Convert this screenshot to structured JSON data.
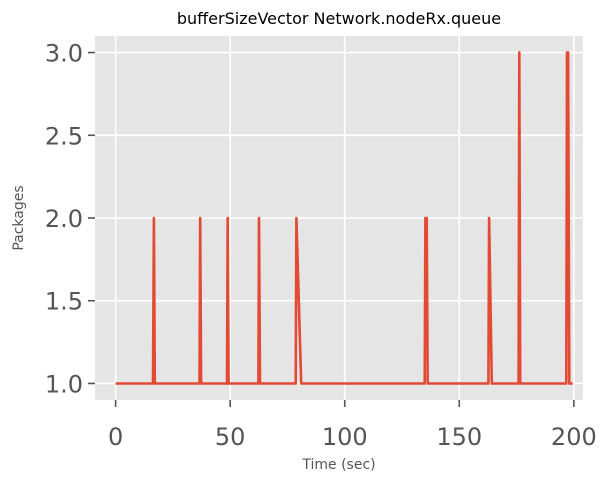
{
  "chart_data": {
    "type": "line",
    "title": "bufferSizeVector Network.nodeRx.queue",
    "xlabel": "Time (sec)",
    "ylabel": "Packages",
    "xlim": [
      -9,
      204
    ],
    "ylim": [
      0.9,
      3.1
    ],
    "xticks": [
      0,
      50,
      100,
      150,
      200
    ],
    "xtick_labels": [
      "0",
      "50",
      "100",
      "150",
      "200"
    ],
    "yticks": [
      1.0,
      1.5,
      2.0,
      2.5,
      3.0
    ],
    "ytick_labels": [
      "1.0",
      "1.5",
      "2.0",
      "2.5",
      "3.0"
    ],
    "grid": true,
    "background": "#E5E5E5",
    "grid_color": "#FFFFFF",
    "series": [
      {
        "color": "#E24A33",
        "x": [
          0,
          16.3,
          16.7,
          17.1,
          36.6,
          36.9,
          37.3,
          48.6,
          48.9,
          49.3,
          62.3,
          62.6,
          63.0,
          78.6,
          78.9,
          81.0,
          134.9,
          135.2,
          135.8,
          136.2,
          162.7,
          163.0,
          164.2,
          175.9,
          176.2,
          176.6,
          196.7,
          197.0,
          197.5,
          198.0,
          199.5
        ],
        "y": [
          1,
          1,
          2,
          1,
          1,
          2,
          1,
          1,
          2,
          1,
          1,
          2,
          1,
          1,
          2,
          1,
          1,
          2,
          2,
          1,
          1,
          2,
          1,
          1,
          3,
          1,
          1,
          3,
          3,
          1,
          1
        ]
      }
    ]
  }
}
